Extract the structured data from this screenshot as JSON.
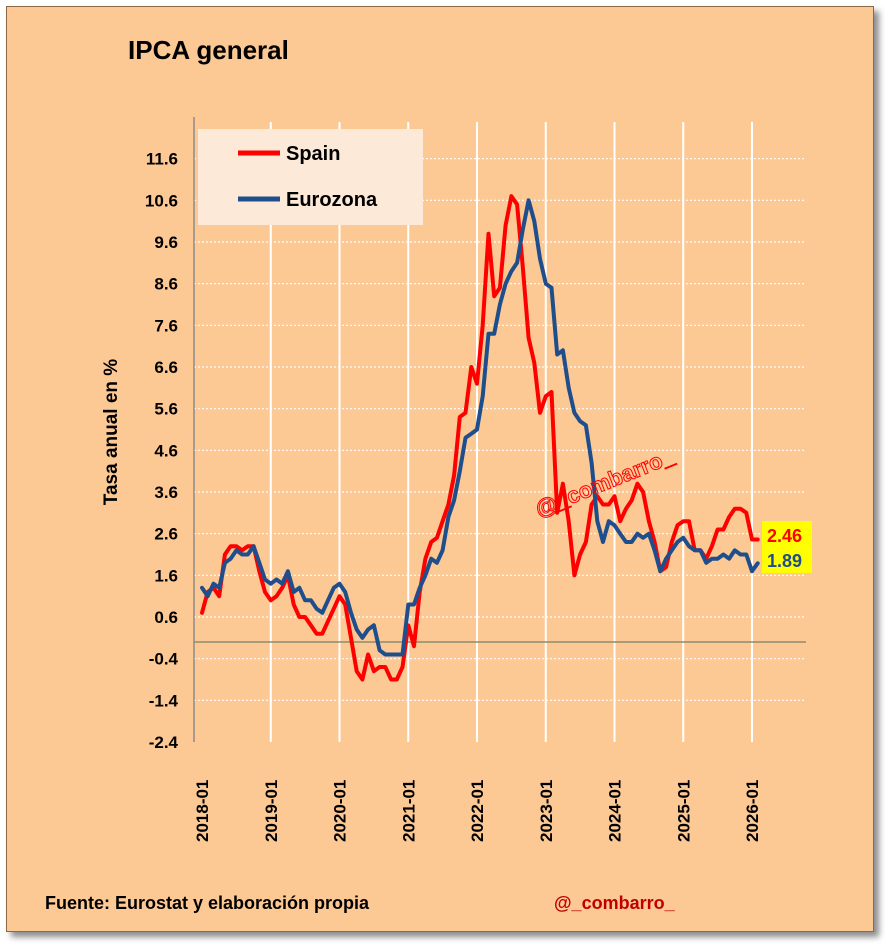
{
  "chart_data": {
    "type": "line",
    "title": "IPCA general",
    "ylabel": "Tasa anual en %",
    "xlabel": "",
    "ylim": [
      -2.4,
      12.6
    ],
    "yticks": [
      11.6,
      10.6,
      9.6,
      8.6,
      7.6,
      6.6,
      5.6,
      4.6,
      3.6,
      2.6,
      1.6,
      0.6,
      -0.4,
      -1.4,
      -2.4
    ],
    "ytick_labels": [
      "11.6",
      "10.6",
      "9.6",
      "8.6",
      "7.6",
      "6.6",
      "5.6",
      "4.6",
      "3.6",
      "2.6",
      "1.6",
      "0.6",
      "-0.4",
      "-1.4",
      "-2.4"
    ],
    "xticks": [
      "2018-01",
      "2019-01",
      "2020-01",
      "2021-01",
      "2022-01",
      "2023-01",
      "2024-01",
      "2025-01",
      "2026-01"
    ],
    "x_start": "2018-01",
    "grid": true,
    "legend_position": "top-left",
    "series": [
      {
        "name": "Spain",
        "color": "#ff0000",
        "values": [
          0.7,
          1.2,
          1.3,
          1.1,
          2.1,
          2.3,
          2.3,
          2.2,
          2.3,
          2.3,
          1.7,
          1.2,
          1.0,
          1.1,
          1.3,
          1.6,
          0.9,
          0.6,
          0.6,
          0.4,
          0.2,
          0.2,
          0.5,
          0.8,
          1.1,
          0.9,
          0.1,
          -0.7,
          -0.9,
          -0.3,
          -0.7,
          -0.6,
          -0.6,
          -0.9,
          -0.9,
          -0.6,
          0.4,
          -0.1,
          1.2,
          2.0,
          2.4,
          2.5,
          2.9,
          3.3,
          4.0,
          5.4,
          5.5,
          6.6,
          6.2,
          7.6,
          9.8,
          8.3,
          8.5,
          10.0,
          10.7,
          10.5,
          9.0,
          7.3,
          6.7,
          5.5,
          5.9,
          6.0,
          3.1,
          3.8,
          2.9,
          1.6,
          2.1,
          2.4,
          3.3,
          3.5,
          3.3,
          3.3,
          3.5,
          2.9,
          3.2,
          3.4,
          3.8,
          3.6,
          2.9,
          2.4,
          1.7,
          1.8,
          2.4,
          2.8,
          2.9,
          2.9,
          2.2,
          2.2,
          2.0,
          2.3,
          2.7,
          2.7,
          3.0,
          3.2,
          3.2,
          3.1,
          2.46,
          2.46
        ]
      },
      {
        "name": "Eurozona",
        "color": "#1f4e8c",
        "values": [
          1.3,
          1.1,
          1.4,
          1.3,
          1.9,
          2.0,
          2.2,
          2.1,
          2.1,
          2.3,
          1.9,
          1.5,
          1.4,
          1.5,
          1.4,
          1.7,
          1.2,
          1.3,
          1.0,
          1.0,
          0.8,
          0.7,
          1.0,
          1.3,
          1.4,
          1.2,
          0.7,
          0.3,
          0.1,
          0.3,
          0.4,
          -0.2,
          -0.3,
          -0.3,
          -0.3,
          -0.3,
          0.9,
          0.9,
          1.3,
          1.6,
          2.0,
          1.9,
          2.2,
          3.0,
          3.4,
          4.1,
          4.9,
          5.0,
          5.1,
          5.9,
          7.4,
          7.4,
          8.1,
          8.6,
          8.9,
          9.1,
          9.9,
          10.6,
          10.1,
          9.2,
          8.6,
          8.5,
          6.9,
          7.0,
          6.1,
          5.5,
          5.3,
          5.2,
          4.3,
          2.9,
          2.4,
          2.9,
          2.8,
          2.6,
          2.4,
          2.4,
          2.6,
          2.5,
          2.6,
          2.2,
          1.7,
          2.0,
          2.2,
          2.4,
          2.5,
          2.3,
          2.2,
          2.2,
          1.9,
          2.0,
          2.0,
          2.1,
          2.0,
          2.2,
          2.1,
          2.1,
          1.7,
          1.89
        ]
      }
    ],
    "annotations": [
      {
        "text": "2.46",
        "color": "#ff0000",
        "background": "#ffff00"
      },
      {
        "text": "1.89",
        "color": "#1f4e8c",
        "background": "#ffff00"
      },
      {
        "text": "@_combarro_",
        "color": "#ff0000"
      }
    ],
    "footer_source": "Fuente: Eurostat y elaboración propia",
    "footer_handle": "@_combarro_"
  }
}
